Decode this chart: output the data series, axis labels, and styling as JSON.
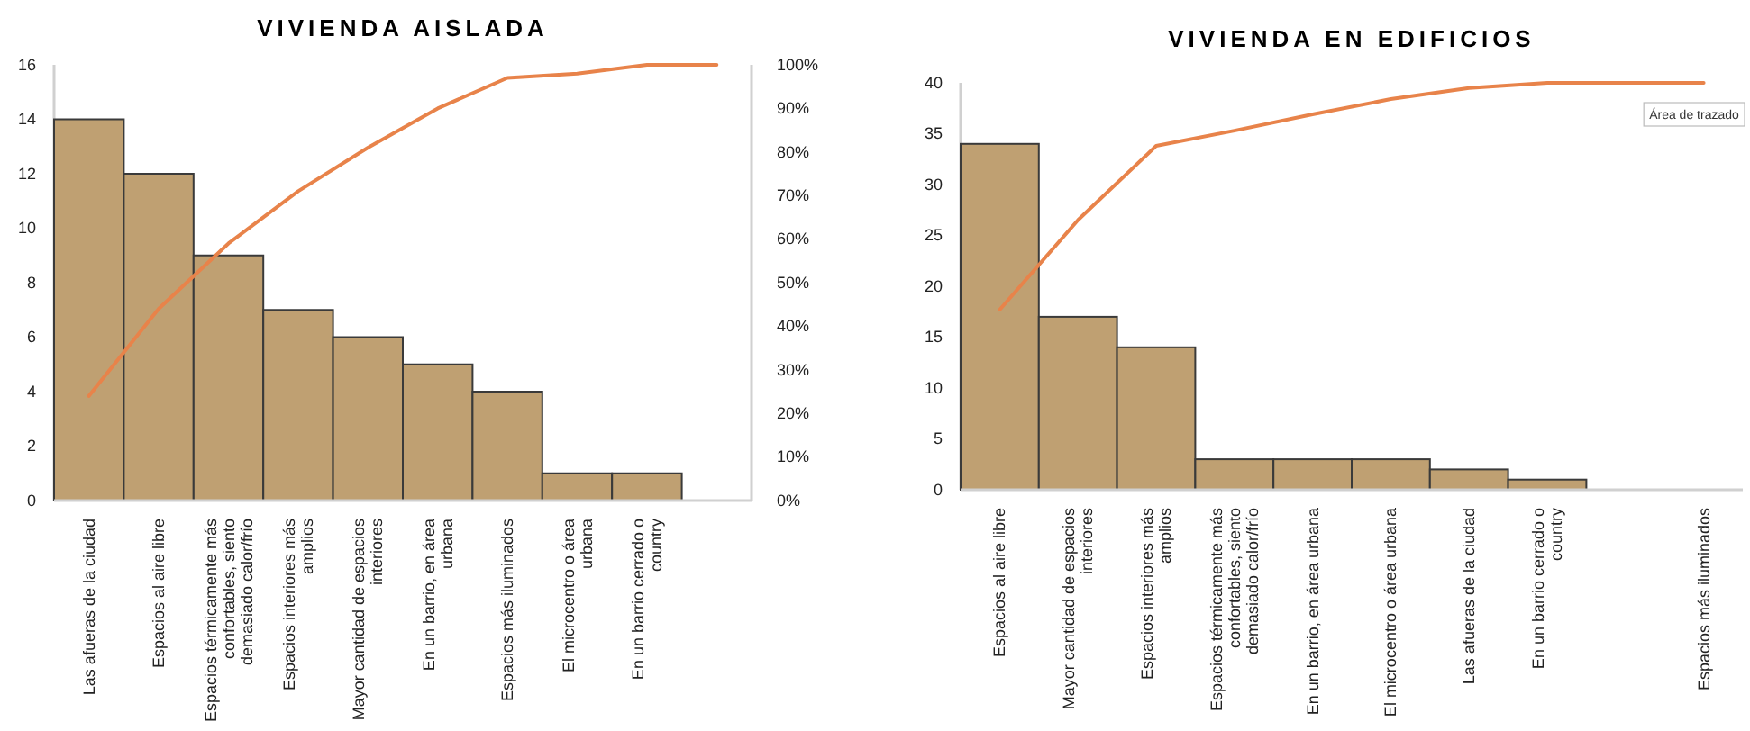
{
  "chart_data": [
    {
      "type": "bar",
      "title": "VIVIENDA AISLADA",
      "categories": [
        "Las afueras de la ciudad",
        "Espacios al aire libre",
        "Espacios térmicamente más confortables, siento demasiado calor/frío",
        "Espacios interiores más amplios",
        "Mayor cantidad de espacios interiores",
        "En un barrio, en área urbana",
        "Espacios más iluminados",
        "El microcentro o área urbana",
        "En un barrio cerrado o country",
        null
      ],
      "series": [
        {
          "color": "#bfa072",
          "values": [
            14,
            12,
            9,
            7,
            6,
            5,
            4,
            1,
            1,
            null
          ]
        },
        {
          "type": "line",
          "axis": "y2",
          "color": "#e8834a",
          "values": [
            24,
            44,
            59,
            71,
            81,
            90,
            97,
            98,
            100,
            100
          ]
        }
      ],
      "ylim": [
        0,
        16
      ],
      "yticks": [
        0,
        2,
        4,
        6,
        8,
        10,
        12,
        14,
        16
      ],
      "y2lim": [
        0,
        100
      ],
      "y2ticks": [
        {
          "value": 0,
          "label": "0%"
        },
        {
          "value": 10,
          "label": "10%"
        },
        {
          "value": 20,
          "label": "20%"
        },
        {
          "value": 30,
          "label": "30%"
        },
        {
          "value": 40,
          "label": "40%"
        },
        {
          "value": 50,
          "label": "50%"
        },
        {
          "value": 60,
          "label": "60%"
        },
        {
          "value": 70,
          "label": "70%"
        },
        {
          "value": 80,
          "label": "80%"
        },
        {
          "value": 90,
          "label": "90%"
        },
        {
          "value": 100,
          "label": "100%"
        }
      ],
      "grid": false
    },
    {
      "type": "bar",
      "title": "VIVIENDA EN EDIFICIOS",
      "categories": [
        "Espacios al aire libre",
        "Mayor cantidad de espacios interiores",
        "Espacios interiores más amplios",
        "Espacios térmicamente más confortables, siento demasiado calor/frío",
        "En un barrio, en área urbana",
        "El microcentro o área urbana",
        "Las afueras de la ciudad",
        "En un barrio cerrado o country",
        null,
        "Espacios más iluminados"
      ],
      "series": [
        {
          "color": "#bfa072",
          "values": [
            34,
            17,
            14,
            3,
            3,
            3,
            2,
            1,
            null,
            0
          ]
        },
        {
          "type": "line",
          "color": "#e8834a",
          "values": [
            17.7,
            26.5,
            33.8,
            35.3,
            36.9,
            38.4,
            39.5,
            40,
            40,
            40
          ]
        }
      ],
      "ylim": [
        0,
        40
      ],
      "yticks": [
        0,
        5,
        10,
        15,
        20,
        25,
        30,
        35,
        40
      ],
      "annotations": [
        "Área de trazado"
      ],
      "grid": false
    }
  ]
}
